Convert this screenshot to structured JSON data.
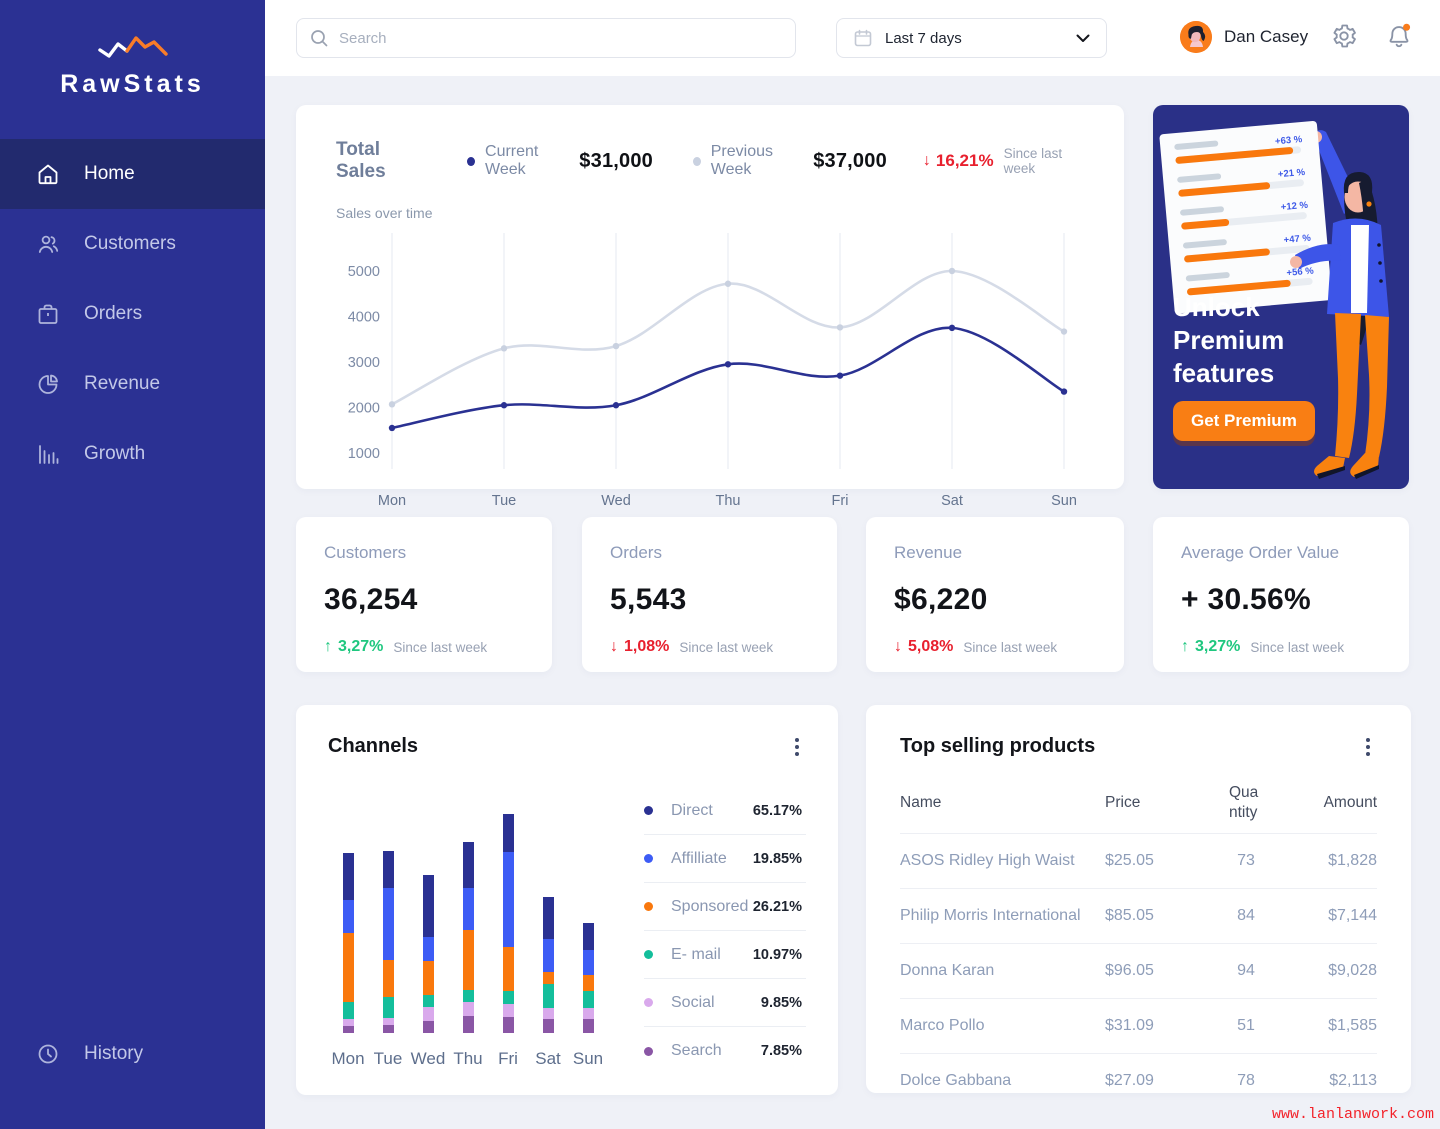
{
  "app": {
    "name": "RawStats"
  },
  "sidebar": {
    "items": [
      {
        "label": "Home",
        "icon": "home-icon",
        "active": true
      },
      {
        "label": "Customers",
        "icon": "customers-icon",
        "active": false
      },
      {
        "label": "Orders",
        "icon": "orders-icon",
        "active": false
      },
      {
        "label": "Revenue",
        "icon": "revenue-icon",
        "active": false
      },
      {
        "label": "Growth",
        "icon": "growth-icon",
        "active": false
      }
    ],
    "history": {
      "label": "History",
      "icon": "clock-icon"
    }
  },
  "topbar": {
    "search_placeholder": "Search",
    "date_range": "Last 7 days",
    "user_name": "Dan Casey"
  },
  "sales_card": {
    "title": "Total Sales",
    "subtitle": "Sales over time",
    "legend": [
      {
        "label": "Current Week",
        "value": "$31,000",
        "color": "#2A3192"
      },
      {
        "label": "Previous Week",
        "value": "$37,000",
        "color": "#C9D1E0"
      }
    ],
    "delta": {
      "arrow": "↓",
      "value": "16,21%",
      "caption": "Since last week"
    }
  },
  "premium_card": {
    "title": "Unlock Premium features",
    "button_label": "Get Premium",
    "board_values": [
      "+63 %",
      "+21 %",
      "+12 %",
      "+47 %",
      "+56 %"
    ],
    "accent_color": "#F97E14",
    "background_color": "#2A3087"
  },
  "stat_cards": [
    {
      "title": "Customers",
      "value": "36,254",
      "arrow": "↑",
      "direction": "up",
      "delta": "3,27%",
      "caption": "Since last week"
    },
    {
      "title": "Orders",
      "value": "5,543",
      "arrow": "↓",
      "direction": "down",
      "delta": "1,08%",
      "caption": "Since last week"
    },
    {
      "title": "Revenue",
      "value": "$6,220",
      "arrow": "↓",
      "direction": "down",
      "delta": "5,08%",
      "caption": "Since last week"
    },
    {
      "title": "Average Order Value",
      "value": "+ 30.56%",
      "arrow": "↑",
      "direction": "up",
      "delta": "3,27%",
      "caption": "Since last week"
    }
  ],
  "channels_card": {
    "title": "Channels"
  },
  "products_card": {
    "title": "Top selling products",
    "columns": [
      "Name",
      "Price",
      "Quantity",
      "Amount"
    ],
    "rows": [
      [
        "ASOS Ridley High Waist",
        "$25.05",
        "73",
        "$1,828"
      ],
      [
        "Philip Morris International",
        "$85.05",
        "84",
        "$7,144"
      ],
      [
        "Donna Karan",
        "$96.05",
        "94",
        "$9,028"
      ],
      [
        "Marco Pollo",
        "$31.09",
        "51",
        "$1,585"
      ],
      [
        "Dolce  Gabbana",
        "$27.09",
        "78",
        "$2,113"
      ]
    ]
  },
  "watermark": {
    "text": "www.lanlanwork.com"
  },
  "colors": {
    "sidebar": "#2B3193",
    "sidebar_active": "#222A6E",
    "background": "#EFF1F7",
    "navy": "#2A3192",
    "royal_blue": "#3D5CF5",
    "orange": "#F9780D",
    "mint": "#14BE9B",
    "lavender": "#D9A9EC",
    "purple": "#8A56A5",
    "green_delta": "#1FC77F",
    "red_delta": "#E8202E"
  },
  "chart_data": [
    {
      "type": "line",
      "title": "Total Sales — Sales over time",
      "x": [
        "Mon",
        "Tue",
        "Wed",
        "Thu",
        "Fri",
        "Sat",
        "Sun"
      ],
      "series": [
        {
          "name": "Previous Week",
          "color": "#D5DBE7",
          "marker_color": "#C9D1E0",
          "values": [
            2070,
            3300,
            3350,
            4720,
            3760,
            5000,
            3670
          ]
        },
        {
          "name": "Current Week",
          "color": "#2A3192",
          "marker_color": "#2A3192",
          "values": [
            1550,
            2050,
            2050,
            2950,
            2700,
            3750,
            2350
          ]
        }
      ],
      "ylim": [
        1000,
        5000
      ],
      "yticks": [
        1000,
        2000,
        3000,
        4000,
        5000
      ],
      "grid": "vertical",
      "legend_position": "top"
    },
    {
      "type": "bar",
      "stacked": true,
      "title": "Channels",
      "categories": [
        "Mon",
        "Tue",
        "Wed",
        "Thu",
        "Fri",
        "Sat",
        "Sun"
      ],
      "series": [
        {
          "name": "Search",
          "color": "#8A56A5",
          "values": [
            7,
            8,
            12,
            17,
            16,
            14,
            14
          ]
        },
        {
          "name": "Social",
          "color": "#D9A9EC",
          "values": [
            7,
            7,
            14,
            14,
            13,
            11,
            11
          ]
        },
        {
          "name": "E- mail",
          "color": "#14BE9B",
          "values": [
            17,
            21,
            12,
            12,
            13,
            24,
            17
          ]
        },
        {
          "name": "Sponsored",
          "color": "#F9780D",
          "values": [
            69,
            37,
            34,
            60,
            44,
            12,
            16
          ]
        },
        {
          "name": "Affilliate",
          "color": "#3D5CF5",
          "values": [
            33,
            72,
            24,
            42,
            95,
            33,
            25
          ]
        },
        {
          "name": "Direct",
          "color": "#2A3192",
          "values": [
            47,
            37,
            62,
            46,
            38,
            42,
            27
          ]
        }
      ],
      "value_unit": "relative-height",
      "legend": [
        {
          "label": "Direct",
          "percent": "65.17%",
          "color": "#2A3192"
        },
        {
          "label": "Affilliate",
          "percent": "19.85%",
          "color": "#3D5CF5"
        },
        {
          "label": "Sponsored",
          "percent": "26.21%",
          "color": "#F9780D"
        },
        {
          "label": "E- mail",
          "percent": "10.97%",
          "color": "#14BE9B"
        },
        {
          "label": "Social",
          "percent": "9.85%",
          "color": "#D9A9EC"
        },
        {
          "label": "Search",
          "percent": "7.85%",
          "color": "#8A56A5"
        }
      ],
      "legend_position": "right"
    }
  ]
}
